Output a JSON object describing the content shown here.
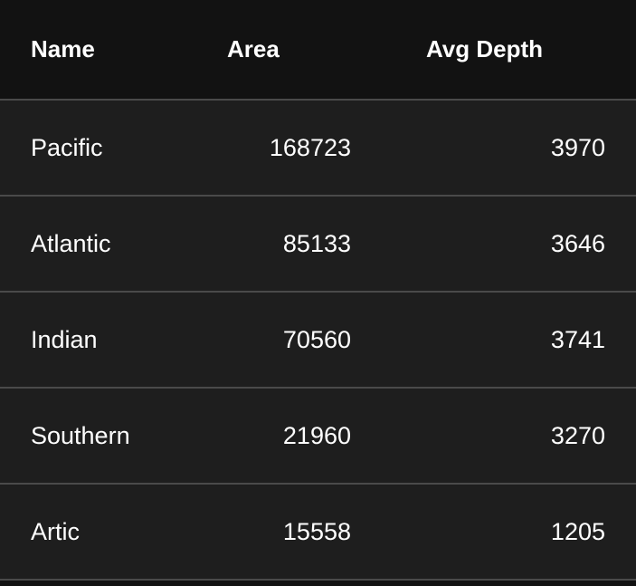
{
  "table": {
    "headers": {
      "name": "Name",
      "area": "Area",
      "depth": "Avg Depth"
    },
    "rows": [
      {
        "name": "Pacific",
        "area": "168723",
        "depth": "3970"
      },
      {
        "name": "Atlantic",
        "area": "85133",
        "depth": "3646"
      },
      {
        "name": "Indian",
        "area": "70560",
        "depth": "3741"
      },
      {
        "name": "Southern",
        "area": "21960",
        "depth": "3270"
      },
      {
        "name": "Artic",
        "area": "15558",
        "depth": "1205"
      }
    ]
  },
  "colors": {
    "header_bg": "#121212",
    "row_bg": "#1e1e1e",
    "divider": "#4a4a4a",
    "text": "#ffffff"
  }
}
